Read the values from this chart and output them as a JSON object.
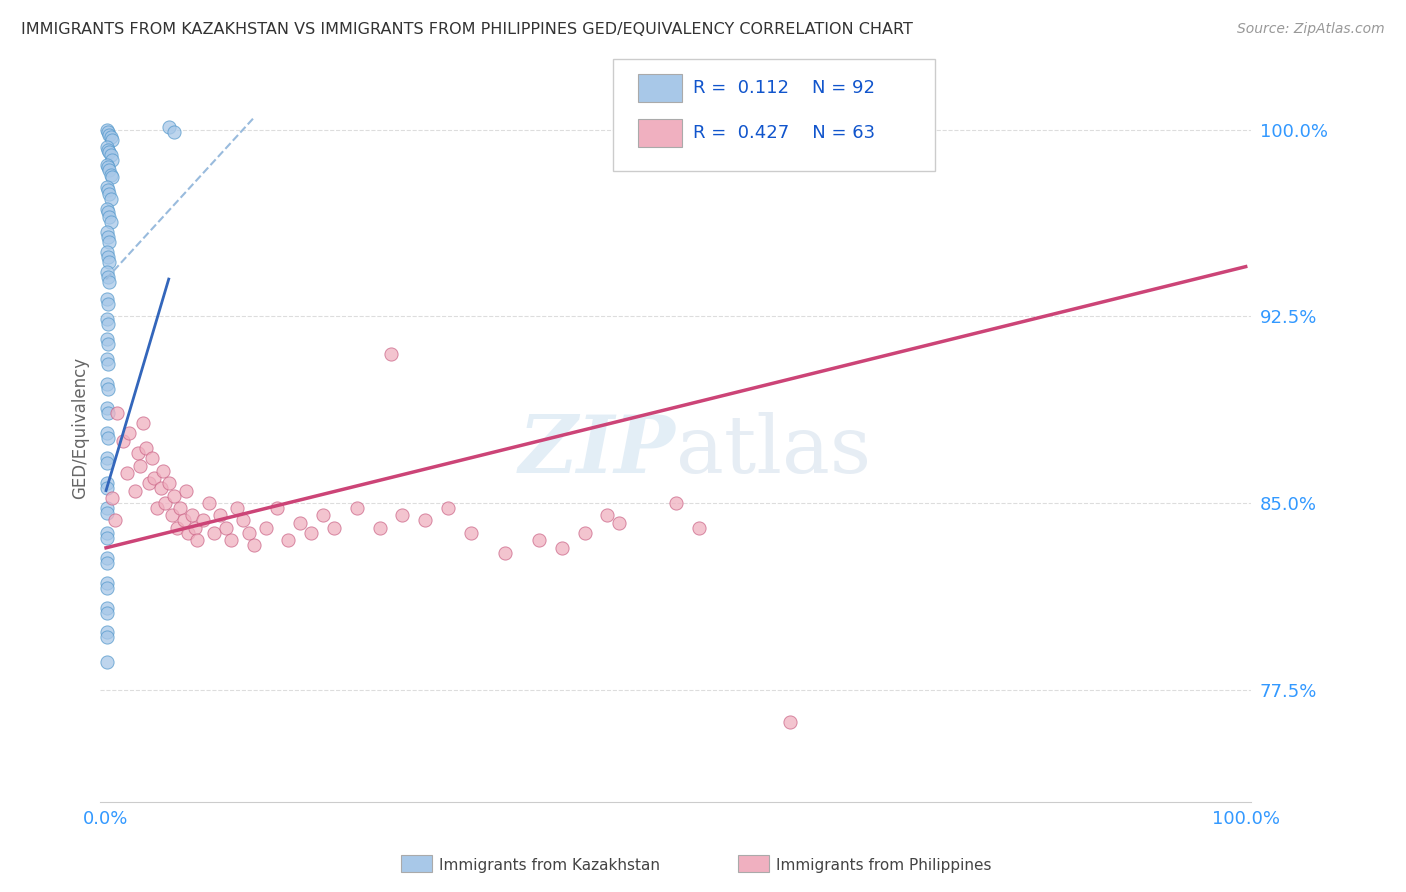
{
  "title": "IMMIGRANTS FROM KAZAKHSTAN VS IMMIGRANTS FROM PHILIPPINES GED/EQUIVALENCY CORRELATION CHART",
  "source": "Source: ZipAtlas.com",
  "ylabel": "GED/Equivalency",
  "y_ticks": [
    0.775,
    0.85,
    0.925,
    1.0
  ],
  "y_tick_labels": [
    "77.5%",
    "85.0%",
    "92.5%",
    "100.0%"
  ],
  "legend_R1": "0.112",
  "legend_N1": "92",
  "legend_R2": "0.427",
  "legend_N2": "63",
  "legend_label1": "Immigrants from Kazakhstan",
  "legend_label2": "Immigrants from Philippines",
  "watermark_zip": "ZIP",
  "watermark_atlas": "atlas",
  "blue_scatter_color": "#a8c8e8",
  "blue_edge_color": "#5599cc",
  "pink_scatter_color": "#f0b0c0",
  "pink_edge_color": "#cc6688",
  "blue_line_color": "#3366bb",
  "blue_dash_color": "#99bbdd",
  "pink_line_color": "#cc4477",
  "grid_color": "#dddddd",
  "axis_tick_color": "#3399ff",
  "title_color": "#333333",
  "source_color": "#999999",
  "ylabel_color": "#666666",
  "background_color": "#ffffff",
  "ylim": [
    0.73,
    1.03
  ],
  "xlim": [
    -0.005,
    1.005
  ],
  "blue_scatter_x": [
    0.001,
    0.002,
    0.003,
    0.004,
    0.005,
    0.001,
    0.002,
    0.003,
    0.004,
    0.005,
    0.001,
    0.002,
    0.003,
    0.004,
    0.005,
    0.001,
    0.002,
    0.003,
    0.004,
    0.001,
    0.002,
    0.003,
    0.004,
    0.001,
    0.002,
    0.003,
    0.001,
    0.002,
    0.003,
    0.001,
    0.002,
    0.003,
    0.001,
    0.002,
    0.001,
    0.002,
    0.001,
    0.002,
    0.001,
    0.002,
    0.001,
    0.002,
    0.001,
    0.002,
    0.001,
    0.002,
    0.001,
    0.001,
    0.001,
    0.001,
    0.001,
    0.001,
    0.001,
    0.001,
    0.001,
    0.001,
    0.001,
    0.001,
    0.001,
    0.001,
    0.001,
    0.001,
    0.001,
    0.055,
    0.06
  ],
  "blue_scatter_y": [
    1.0,
    0.999,
    0.998,
    0.997,
    0.996,
    0.993,
    0.992,
    0.991,
    0.99,
    0.988,
    0.986,
    0.985,
    0.984,
    0.982,
    0.981,
    0.977,
    0.976,
    0.974,
    0.972,
    0.968,
    0.967,
    0.965,
    0.963,
    0.959,
    0.957,
    0.955,
    0.951,
    0.949,
    0.947,
    0.943,
    0.941,
    0.939,
    0.932,
    0.93,
    0.924,
    0.922,
    0.916,
    0.914,
    0.908,
    0.906,
    0.898,
    0.896,
    0.888,
    0.886,
    0.878,
    0.876,
    0.868,
    0.866,
    0.858,
    0.856,
    0.848,
    0.846,
    0.838,
    0.836,
    0.828,
    0.826,
    0.818,
    0.816,
    0.808,
    0.806,
    0.798,
    0.796,
    0.786,
    1.001,
    0.999
  ],
  "pink_scatter_x": [
    0.005,
    0.008,
    0.01,
    0.015,
    0.018,
    0.02,
    0.025,
    0.028,
    0.03,
    0.032,
    0.035,
    0.038,
    0.04,
    0.042,
    0.045,
    0.048,
    0.05,
    0.052,
    0.055,
    0.058,
    0.06,
    0.062,
    0.065,
    0.068,
    0.07,
    0.072,
    0.075,
    0.078,
    0.08,
    0.085,
    0.09,
    0.095,
    0.1,
    0.105,
    0.11,
    0.115,
    0.12,
    0.125,
    0.13,
    0.14,
    0.15,
    0.16,
    0.17,
    0.18,
    0.19,
    0.2,
    0.22,
    0.24,
    0.26,
    0.28,
    0.3,
    0.25,
    0.32,
    0.35,
    0.38,
    0.4,
    0.42,
    0.44,
    0.45,
    0.5,
    0.52,
    0.6
  ],
  "pink_scatter_y": [
    0.852,
    0.843,
    0.886,
    0.875,
    0.862,
    0.878,
    0.855,
    0.87,
    0.865,
    0.882,
    0.872,
    0.858,
    0.868,
    0.86,
    0.848,
    0.856,
    0.863,
    0.85,
    0.858,
    0.845,
    0.853,
    0.84,
    0.848,
    0.843,
    0.855,
    0.838,
    0.845,
    0.84,
    0.835,
    0.843,
    0.85,
    0.838,
    0.845,
    0.84,
    0.835,
    0.848,
    0.843,
    0.838,
    0.833,
    0.84,
    0.848,
    0.835,
    0.842,
    0.838,
    0.845,
    0.84,
    0.848,
    0.84,
    0.845,
    0.843,
    0.848,
    0.91,
    0.838,
    0.83,
    0.835,
    0.832,
    0.838,
    0.845,
    0.842,
    0.85,
    0.84,
    0.762
  ],
  "blue_solid_line_x": [
    0.0,
    0.055
  ],
  "blue_solid_line_y": [
    0.855,
    0.94
  ],
  "blue_dash_line_x": [
    0.0,
    0.13
  ],
  "blue_dash_line_y": [
    0.94,
    1.005
  ],
  "pink_line_x": [
    0.0,
    1.0
  ],
  "pink_line_y": [
    0.832,
    0.945
  ]
}
